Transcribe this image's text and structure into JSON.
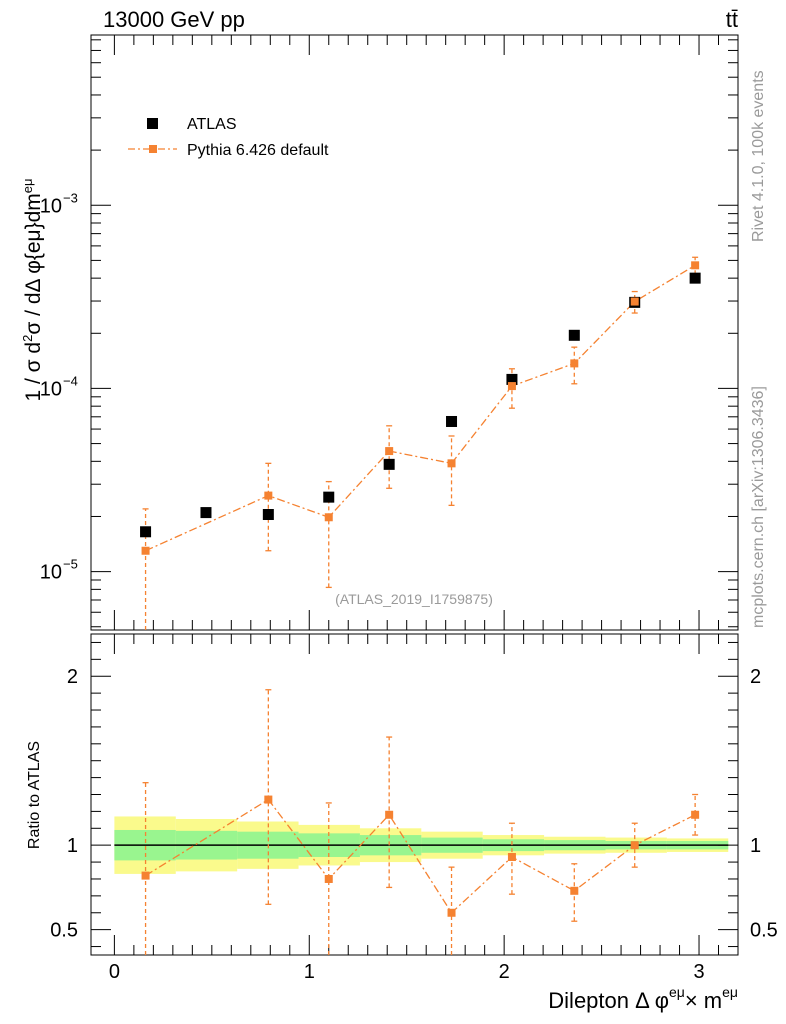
{
  "header": {
    "energy_label": "13000 GeV pp",
    "process_label": "tt̄"
  },
  "side_text": {
    "rivet": "Rivet 4.1.0,  100k events",
    "site": "mcplots.cern.ch [arXiv:1306.3436]"
  },
  "analysis_label": "(ATLAS_2019_I1759875)",
  "legend": {
    "data_label": "ATLAS",
    "mc_label": "Pythia 6.426 default"
  },
  "chart_data": [
    {
      "type": "scatter",
      "panel": "main",
      "title": "13000 GeV pp",
      "ylabel": "1 / σ  d²σ / dΔ φ{eμ}dm^eμ",
      "xlabel": "Dilepton Δ φ^eμ × m^eμ",
      "yscale": "log",
      "xlim": [
        -0.12,
        3.2
      ],
      "ylim": [
        4.8e-06,
        0.0085
      ],
      "colors": {
        "data": "#000000",
        "mc": "#f58231"
      },
      "y_ticks": [
        {
          "label_base": "10",
          "label_exp": "−5",
          "value": 1e-05
        },
        {
          "label_base": "10",
          "label_exp": "−4",
          "value": 0.0001
        },
        {
          "label_base": "10",
          "label_exp": "−3",
          "value": 0.001
        }
      ],
      "series": [
        {
          "name": "ATLAS",
          "x": [
            0.16,
            0.47,
            0.79,
            1.1,
            1.41,
            1.73,
            2.04,
            2.36,
            2.67,
            2.98
          ],
          "y": [
            1.65e-05,
            2.1e-05,
            2.05e-05,
            2.55e-05,
            3.85e-05,
            6.6e-05,
            0.000112,
            0.000195,
            0.000295,
            0.0004
          ]
        },
        {
          "name": "Pythia 6.426 default",
          "x": [
            0.16,
            0.79,
            1.1,
            1.41,
            1.73,
            2.04,
            2.36,
            2.67,
            2.98
          ],
          "y": [
            1.3e-05,
            2.6e-05,
            1.98e-05,
            4.55e-05,
            3.9e-05,
            0.000103,
            0.000137,
            0.000298,
            0.00047
          ],
          "err_lo": [
            1.3e-05,
            1.3e-05,
            1.16e-05,
            1.7e-05,
            1.6e-05,
            2.5e-05,
            3.1e-05,
            4e-05,
            5e-05
          ],
          "err_hi": [
            9e-06,
            1.3e-05,
            1.12e-05,
            1.7e-05,
            1.6e-05,
            2.5e-05,
            3.1e-05,
            4e-05,
            5e-05
          ]
        }
      ]
    },
    {
      "type": "scatter",
      "panel": "ratio",
      "ylabel": "Ratio to ATLAS",
      "xlabel": "Dilepton Δ φ^eμ × m^eμ",
      "xlim": [
        -0.12,
        3.2
      ],
      "ylim": [
        0.35,
        2.25
      ],
      "colors": {
        "band_inner": "#99f58f",
        "band_outer": "#fafa8c",
        "mc": "#f58231"
      },
      "x_ticks": [
        0,
        1,
        2,
        3
      ],
      "y_ticks": [
        0.5,
        1,
        2
      ],
      "bands": {
        "edges": [
          0,
          0.315,
          0.63,
          0.945,
          1.26,
          1.575,
          1.89,
          2.205,
          2.52,
          2.835,
          3.15
        ],
        "inner": [
          0.09,
          0.085,
          0.08,
          0.07,
          0.06,
          0.045,
          0.035,
          0.03,
          0.025,
          0.025
        ],
        "outer": [
          0.17,
          0.155,
          0.14,
          0.12,
          0.1,
          0.08,
          0.06,
          0.05,
          0.045,
          0.04
        ]
      },
      "series": [
        {
          "name": "Pythia 6.426 default",
          "x": [
            0.16,
            0.79,
            1.1,
            1.41,
            1.73,
            2.04,
            2.36,
            2.67,
            2.98
          ],
          "y": [
            0.82,
            1.27,
            0.8,
            1.18,
            0.6,
            0.93,
            0.73,
            1.0,
            1.18
          ],
          "err_lo": [
            0.6,
            0.62,
            0.55,
            0.43,
            0.32,
            0.22,
            0.18,
            0.13,
            0.12
          ],
          "err_hi": [
            0.55,
            0.65,
            0.45,
            0.46,
            0.27,
            0.2,
            0.16,
            0.13,
            0.12
          ]
        }
      ]
    }
  ]
}
